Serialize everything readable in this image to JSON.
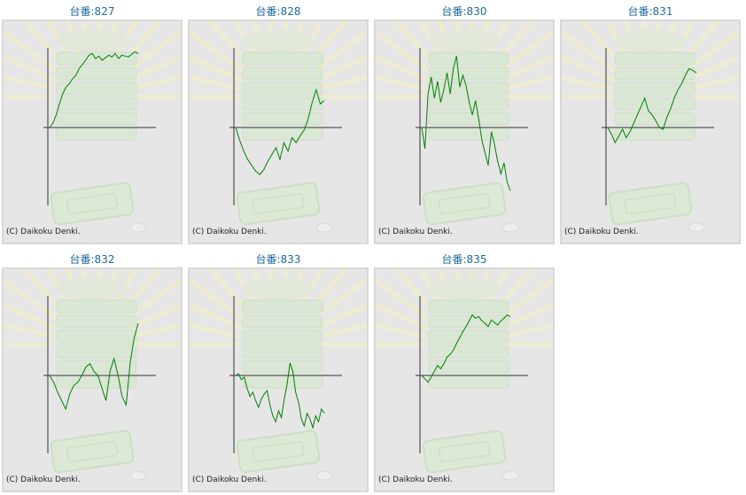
{
  "panels": [
    {
      "label": "台番:827",
      "copyright": "(C) Daikoku Denki."
    },
    {
      "label": "台番:828",
      "copyright": "(C) Daikoku Denki."
    },
    {
      "label": "台番:830",
      "copyright": "(C) Daikoku Denki."
    },
    {
      "label": "台番:831",
      "copyright": "(C) Daikoku Denki."
    },
    {
      "label": "台番:832",
      "copyright": "(C) Daikoku Denki."
    },
    {
      "label": "台番:833",
      "copyright": "(C) Daikoku Denki."
    },
    {
      "label": "台番:835",
      "copyright": "(C) Daikoku Denki."
    }
  ],
  "colors": {
    "line": "#008000",
    "axis": "#333333",
    "title": "#1f6a9c",
    "background": "#e6e6e6"
  },
  "chart_data": [
    {
      "type": "line",
      "title": "台番:827",
      "y": [
        0,
        5,
        15,
        28,
        40,
        48,
        52,
        58,
        62,
        70,
        75,
        80,
        86,
        88,
        82,
        85,
        80,
        83,
        86,
        84,
        88,
        82,
        86,
        85,
        84,
        87,
        90,
        88
      ]
    },
    {
      "type": "line",
      "title": "台番:828",
      "y": [
        0,
        -15,
        -28,
        -38,
        -45,
        -52,
        -56,
        -50,
        -40,
        -32,
        -24,
        -38,
        -18,
        -28,
        -12,
        -18,
        -10,
        -3,
        10,
        30,
        45,
        28,
        32
      ]
    },
    {
      "type": "line",
      "title": "台番:830",
      "y": [
        0,
        -25,
        40,
        60,
        35,
        55,
        30,
        45,
        65,
        40,
        70,
        85,
        48,
        62,
        50,
        30,
        15,
        32,
        10,
        -15,
        -30,
        -45,
        -5,
        -20,
        -40,
        -55,
        -42,
        -65,
        -75
      ]
    },
    {
      "type": "line",
      "title": "台番:831",
      "y": [
        0,
        -8,
        -18,
        -10,
        -2,
        -12,
        -5,
        5,
        15,
        25,
        35,
        20,
        15,
        8,
        0,
        -2,
        12,
        22,
        35,
        45,
        52,
        62,
        70,
        68,
        65
      ]
    },
    {
      "type": "line",
      "title": "台番:832",
      "y": [
        0,
        -8,
        -20,
        -30,
        -40,
        -22,
        -12,
        -8,
        0,
        10,
        14,
        5,
        0,
        -15,
        -30,
        5,
        20,
        0,
        -25,
        -35,
        15,
        45,
        62
      ]
    },
    {
      "type": "line",
      "title": "台番:833",
      "y": [
        0,
        2,
        -5,
        -2,
        -15,
        -25,
        -20,
        -30,
        -38,
        -28,
        -22,
        -18,
        -35,
        -48,
        -55,
        -42,
        -50,
        -28,
        -10,
        15,
        5,
        -20,
        -32,
        -52,
        -60,
        -45,
        -52,
        -62,
        -48,
        -55,
        -40,
        -45
      ]
    },
    {
      "type": "line",
      "title": "台番:835",
      "y": [
        0,
        -4,
        -8,
        -2,
        5,
        12,
        8,
        14,
        22,
        25,
        30,
        38,
        45,
        52,
        58,
        65,
        72,
        68,
        70,
        65,
        62,
        58,
        66,
        63,
        60,
        65,
        68,
        72,
        70
      ]
    }
  ]
}
